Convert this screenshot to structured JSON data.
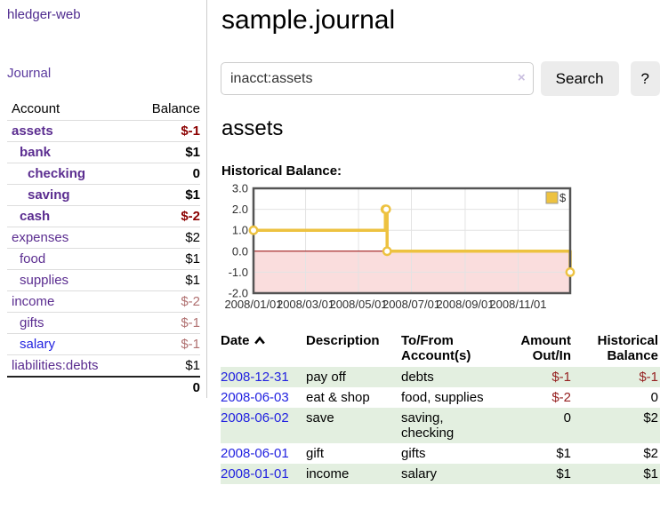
{
  "app": {
    "brand": "hledger-web",
    "nav_journal": "Journal"
  },
  "colors": {
    "purple_link": "#5b2d90",
    "blue_link": "#2222e0",
    "negative_bold": "#8b0000",
    "negative_dim": "#b07070",
    "negative_table": "#962222",
    "stripe_green": "#e3efe0",
    "series_gold": "#EDC240",
    "negative_region_pink": "#fadddd",
    "zero_line_red": "#990000",
    "chart_border": "#545454",
    "button_bg": "#ececec"
  },
  "sidebar": {
    "header": {
      "account": "Account",
      "balance": "Balance"
    },
    "accounts": [
      {
        "name": "assets",
        "depth": 0,
        "balance": "$-1",
        "matched": true,
        "negative": true,
        "unvisited": false
      },
      {
        "name": "bank",
        "depth": 1,
        "balance": "$1",
        "matched": true,
        "negative": false,
        "unvisited": false
      },
      {
        "name": "checking",
        "depth": 2,
        "balance": "0",
        "matched": true,
        "negative": false,
        "unvisited": false
      },
      {
        "name": "saving",
        "depth": 2,
        "balance": "$1",
        "matched": true,
        "negative": false,
        "unvisited": false
      },
      {
        "name": "cash",
        "depth": 1,
        "balance": "$-2",
        "matched": true,
        "negative": true,
        "unvisited": false
      },
      {
        "name": "expenses",
        "depth": 0,
        "balance": "$2",
        "matched": false,
        "negative": false,
        "unvisited": false
      },
      {
        "name": "food",
        "depth": 1,
        "balance": "$1",
        "matched": false,
        "negative": false,
        "unvisited": false
      },
      {
        "name": "supplies",
        "depth": 1,
        "balance": "$1",
        "matched": false,
        "negative": false,
        "unvisited": false
      },
      {
        "name": "income",
        "depth": 0,
        "balance": "$-2",
        "matched": false,
        "negative": true,
        "unvisited": false
      },
      {
        "name": "gifts",
        "depth": 1,
        "balance": "$-1",
        "matched": false,
        "negative": true,
        "unvisited": false
      },
      {
        "name": "salary",
        "depth": 1,
        "balance": "$-1",
        "matched": false,
        "negative": true,
        "unvisited": true
      },
      {
        "name": "liabilities:debts",
        "depth": 0,
        "balance": "$1",
        "matched": false,
        "negative": false,
        "unvisited": false
      }
    ],
    "total": "0"
  },
  "header": {
    "title": "sample.journal"
  },
  "search": {
    "value": "inacct:assets",
    "clear_label": "×",
    "button_label": "Search",
    "help_label": "?"
  },
  "account_page": {
    "heading": "assets",
    "chart_label": "Historical Balance:"
  },
  "chart_data": {
    "type": "line",
    "step": "after",
    "title": "Historical Balance:",
    "series": [
      {
        "name": "$",
        "color": "#EDC240",
        "points": [
          [
            "2008-01-01",
            1
          ],
          [
            "2008-06-01",
            2
          ],
          [
            "2008-06-02",
            2
          ],
          [
            "2008-06-03",
            0
          ],
          [
            "2008-12-31",
            -1
          ]
        ]
      }
    ],
    "x_range": [
      "2008-01-01",
      "2008-12-31"
    ],
    "x_ticks": [
      "2008/01/01",
      "2008/03/01",
      "2008/05/01",
      "2008/07/01",
      "2008/09/01",
      "2008/11/01"
    ],
    "y_ticks": [
      "3.0",
      "2.0",
      "1.0",
      "0.0",
      "-1.0",
      "-2.0"
    ],
    "ylim": [
      -2,
      3
    ],
    "grid": true,
    "legend_label": "$",
    "legend_position": "top-right",
    "negative_region_shaded": true
  },
  "register": {
    "columns": {
      "date": "Date",
      "description": "Description",
      "accounts": "To/From Account(s)",
      "amount": "Amount Out/In",
      "balance": "Historical Balance"
    },
    "rows": [
      {
        "date": "2008-12-31",
        "description": "pay off",
        "accounts": "debts",
        "amount": "$-1",
        "amount_negative": true,
        "balance": "$-1",
        "balance_negative": true
      },
      {
        "date": "2008-06-03",
        "description": "eat & shop",
        "accounts": "food, supplies",
        "amount": "$-2",
        "amount_negative": true,
        "balance": "0",
        "balance_negative": false
      },
      {
        "date": "2008-06-02",
        "description": "save",
        "accounts": "saving, checking",
        "amount": "0",
        "amount_negative": false,
        "balance": "$2",
        "balance_negative": false
      },
      {
        "date": "2008-06-01",
        "description": "gift",
        "accounts": "gifts",
        "amount": "$1",
        "amount_negative": false,
        "balance": "$2",
        "balance_negative": false
      },
      {
        "date": "2008-01-01",
        "description": "income",
        "accounts": "salary",
        "amount": "$1",
        "amount_negative": false,
        "balance": "$1",
        "balance_negative": false
      }
    ]
  }
}
